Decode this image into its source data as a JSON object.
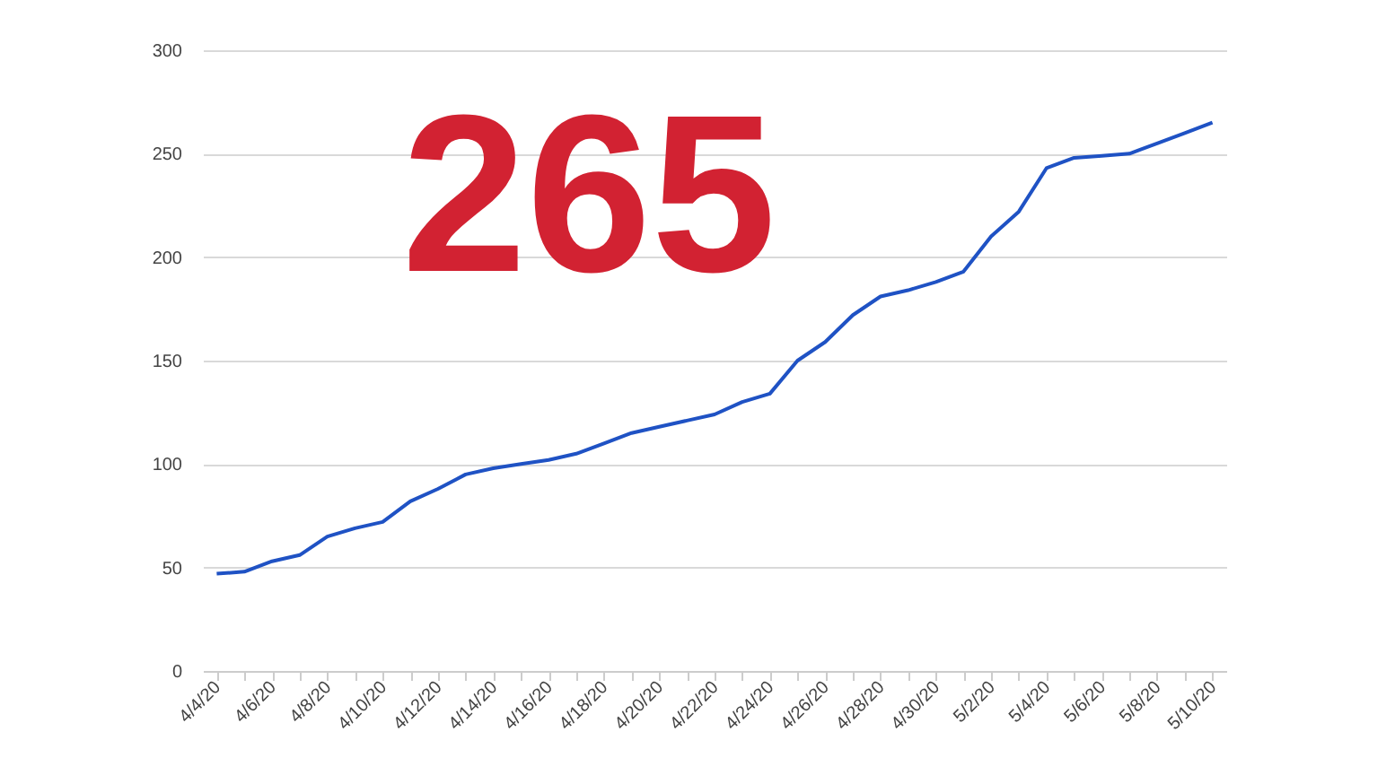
{
  "chart_data": {
    "type": "line",
    "categories": [
      "4/4/20",
      null,
      "4/6/20",
      null,
      "4/8/20",
      null,
      "4/10/20",
      null,
      "4/12/20",
      null,
      "4/14/20",
      null,
      "4/16/20",
      null,
      "4/18/20",
      null,
      "4/20/20",
      null,
      "4/22/20",
      null,
      "4/24/20",
      null,
      "4/26/20",
      null,
      "4/28/20",
      null,
      "4/30/20",
      null,
      "5/2/20",
      null,
      "5/4/20",
      null,
      "5/6/20",
      null,
      "5/8/20",
      null,
      "5/10/20"
    ],
    "series": [
      {
        "color": "#1f52c4",
        "values": [
          47,
          48,
          53,
          56,
          65,
          69,
          72,
          82,
          88,
          95,
          98,
          100,
          102,
          105,
          110,
          115,
          118,
          121,
          124,
          130,
          134,
          150,
          159,
          172,
          181,
          184,
          188,
          193,
          210,
          222,
          243,
          248,
          249,
          250,
          255,
          260,
          265
        ]
      }
    ],
    "ylim": [
      0,
      300
    ],
    "yticks": [
      0,
      50,
      100,
      150,
      200,
      250,
      300
    ],
    "grid": "y",
    "annotations": [
      "265"
    ]
  }
}
